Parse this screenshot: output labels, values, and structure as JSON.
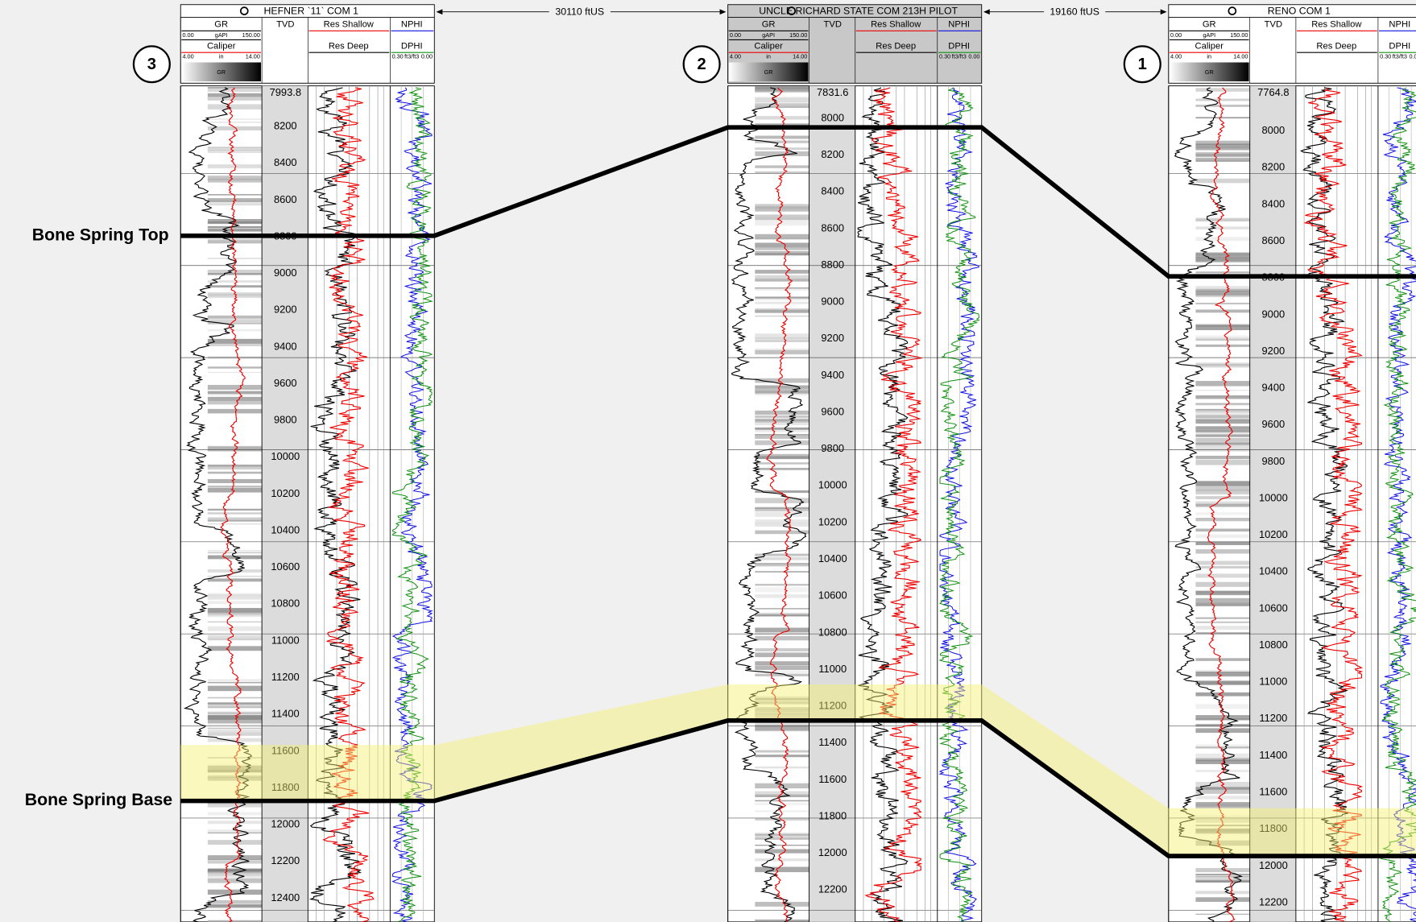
{
  "wells": [
    {
      "name": "HEFNER `11` COM 1",
      "marker": "3",
      "depths": [
        "7993.8",
        "8200",
        "8400",
        "8600",
        "8800",
        "9000",
        "9200",
        "9400",
        "9600",
        "9800",
        "10000",
        "10200",
        "10400",
        "10600",
        "10800",
        "11000",
        "11200",
        "11400",
        "11600",
        "11800",
        "12000",
        "12200",
        "12400"
      ]
    },
    {
      "name": "UNCLE RICHARD STATE COM 213H PILOT",
      "marker": "2",
      "depths": [
        "7831.6",
        "8000",
        "8200",
        "8400",
        "8600",
        "8800",
        "9000",
        "9200",
        "9400",
        "9600",
        "9800",
        "10000",
        "10200",
        "10400",
        "10600",
        "10800",
        "11000",
        "11200",
        "11400",
        "11600",
        "11800",
        "12000",
        "12200"
      ]
    },
    {
      "name": "RENO COM 1",
      "marker": "1",
      "depths": [
        "7764.8",
        "8000",
        "8200",
        "8400",
        "8600",
        "8800",
        "9000",
        "9200",
        "9400",
        "9600",
        "9800",
        "10000",
        "10200",
        "10400",
        "10600",
        "10800",
        "11000",
        "11200",
        "11400",
        "11600",
        "11800",
        "12000",
        "12200"
      ]
    }
  ],
  "track_headers": {
    "gr": "GR",
    "gr_min": "0.00",
    "gr_unit": "gAPI",
    "gr_max": "150.00",
    "tvd": "TVD",
    "res_shallow": "Res Shallow",
    "nphi": "NPHI",
    "caliper": "Caliper",
    "caliper_min": "4.00",
    "caliper_unit": "in",
    "caliper_max": "14.00",
    "res_deep": "Res Deep",
    "dphi": "DPHI",
    "dphi_min": "0.30",
    "dphi_unit": "ft3/ft3",
    "dphi_max": "0.00",
    "gr_fill": "GR"
  },
  "distances": [
    "30110 ftUS",
    "19160 ftUS"
  ],
  "formations": [
    "Bone Spring Top",
    "Bone Spring Base"
  ]
}
